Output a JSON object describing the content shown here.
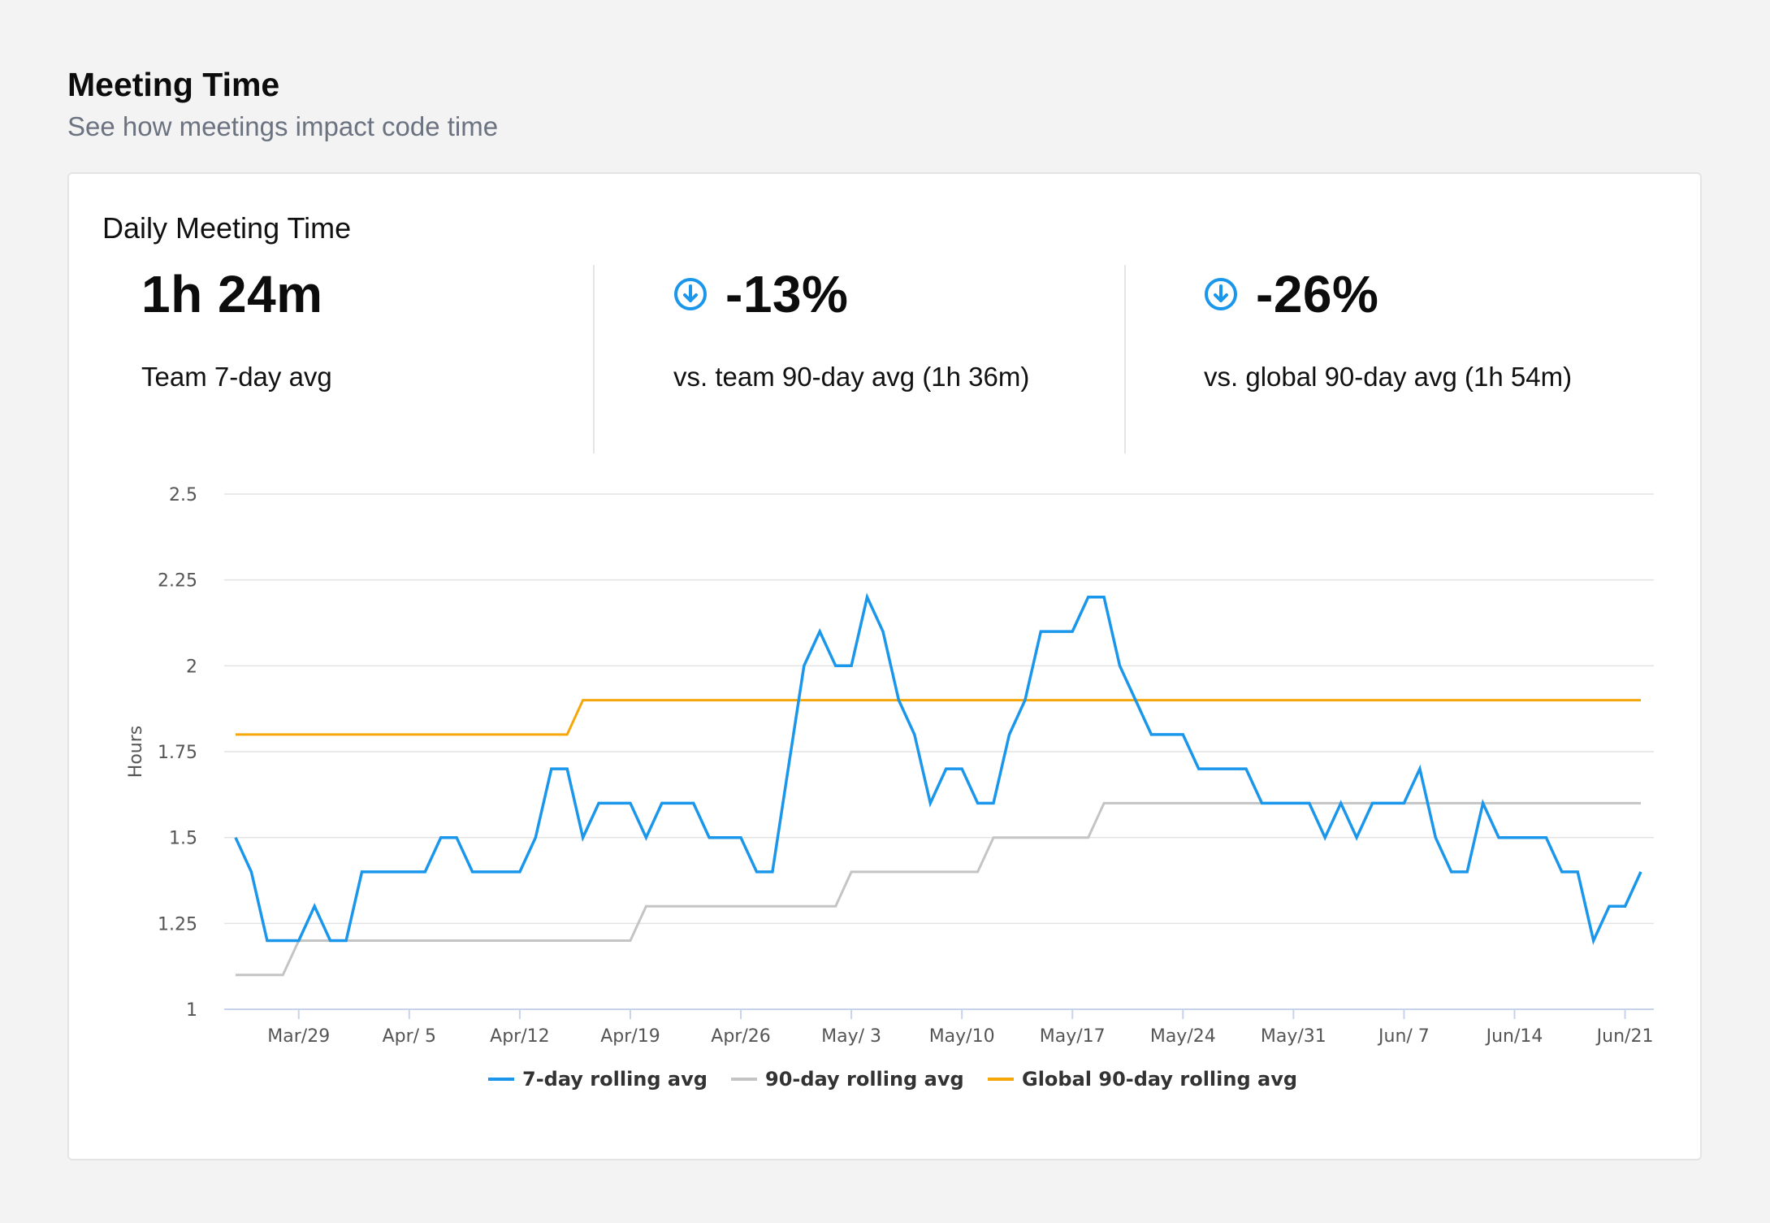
{
  "page": {
    "title": "Meeting Time",
    "subtitle": "See how meetings impact code time"
  },
  "card": {
    "title": "Daily Meeting Time",
    "stats": [
      {
        "value": "1h 24m",
        "label": "Team 7-day avg",
        "icon": ""
      },
      {
        "value": "-13%",
        "label": "vs. team 90-day avg (1h 36m)",
        "icon": "arrow-down-circle-icon"
      },
      {
        "value": "-26%",
        "label": "vs. global 90-day avg (1h 54m)",
        "icon": "arrow-down-circle-icon"
      }
    ]
  },
  "colors": {
    "series_7day": "#1a96ea",
    "series_90day": "#c4c4c4",
    "series_global": "#f5a70a",
    "icon": "#1a96ea"
  },
  "chart_data": {
    "type": "line",
    "ylabel": "Hours",
    "xlabel": "",
    "ylim": [
      1,
      2.5
    ],
    "yticks": [
      "1",
      "1.25",
      "1.5",
      "1.75",
      "2",
      "2.25",
      "2.5"
    ],
    "grid": true,
    "legend_position": "bottom-center",
    "x": [
      "Mar 25",
      "Mar 26",
      "Mar 27",
      "Mar 28",
      "Mar 29",
      "Mar 30",
      "Mar 31",
      "Apr 1",
      "Apr 2",
      "Apr 3",
      "Apr 4",
      "Apr 5",
      "Apr 6",
      "Apr 7",
      "Apr 8",
      "Apr 9",
      "Apr 10",
      "Apr 11",
      "Apr 12",
      "Apr 13",
      "Apr 14",
      "Apr 15",
      "Apr 16",
      "Apr 17",
      "Apr 18",
      "Apr 19",
      "Apr 20",
      "Apr 21",
      "Apr 22",
      "Apr 23",
      "Apr 24",
      "Apr 25",
      "Apr 26",
      "Apr 27",
      "Apr 28",
      "Apr 29",
      "Apr 30",
      "May 1",
      "May 2",
      "May 3",
      "May 4",
      "May 5",
      "May 6",
      "May 7",
      "May 8",
      "May 9",
      "May 10",
      "May 11",
      "May 12",
      "May 13",
      "May 14",
      "May 15",
      "May 16",
      "May 17",
      "May 18",
      "May 19",
      "May 20",
      "May 21",
      "May 22",
      "May 23",
      "May 24",
      "May 25",
      "May 26",
      "May 27",
      "May 28",
      "May 29",
      "May 30",
      "May 31",
      "Jun 1",
      "Jun 2",
      "Jun 3",
      "Jun 4",
      "Jun 5",
      "Jun 6",
      "Jun 7",
      "Jun 8",
      "Jun 9",
      "Jun 10",
      "Jun 11",
      "Jun 12",
      "Jun 13",
      "Jun 14",
      "Jun 15",
      "Jun 16",
      "Jun 17",
      "Jun 18",
      "Jun 19",
      "Jun 20",
      "Jun 21",
      "Jun 22"
    ],
    "xtick_labels": [
      {
        "label": "Mar/29",
        "index": 4
      },
      {
        "label": "Apr/ 5",
        "index": 11
      },
      {
        "label": "Apr/12",
        "index": 18
      },
      {
        "label": "Apr/19",
        "index": 25
      },
      {
        "label": "Apr/26",
        "index": 32
      },
      {
        "label": "May/ 3",
        "index": 39
      },
      {
        "label": "May/10",
        "index": 46
      },
      {
        "label": "May/17",
        "index": 53
      },
      {
        "label": "May/24",
        "index": 60
      },
      {
        "label": "May/31",
        "index": 67
      },
      {
        "label": "Jun/ 7",
        "index": 74
      },
      {
        "label": "Jun/14",
        "index": 81
      },
      {
        "label": "Jun/21",
        "index": 88
      }
    ],
    "series": [
      {
        "name": "7-day rolling avg",
        "values": [
          1.5,
          1.4,
          1.2,
          1.2,
          1.2,
          1.3,
          1.2,
          1.2,
          1.4,
          1.4,
          1.4,
          1.4,
          1.4,
          1.5,
          1.5,
          1.4,
          1.4,
          1.4,
          1.4,
          1.5,
          1.7,
          1.7,
          1.5,
          1.6,
          1.6,
          1.6,
          1.5,
          1.6,
          1.6,
          1.6,
          1.5,
          1.5,
          1.5,
          1.4,
          1.4,
          1.7,
          2.0,
          2.1,
          2.0,
          2.0,
          2.2,
          2.1,
          1.9,
          1.8,
          1.6,
          1.7,
          1.7,
          1.6,
          1.6,
          1.8,
          1.9,
          2.1,
          2.1,
          2.1,
          2.2,
          2.2,
          2.0,
          1.9,
          1.8,
          1.8,
          1.8,
          1.7,
          1.7,
          1.7,
          1.7,
          1.6,
          1.6,
          1.6,
          1.6,
          1.5,
          1.6,
          1.5,
          1.6,
          1.6,
          1.6,
          1.7,
          1.5,
          1.4,
          1.4,
          1.6,
          1.5,
          1.5,
          1.5,
          1.5,
          1.4,
          1.4,
          1.2,
          1.3,
          1.3,
          1.4
        ]
      },
      {
        "name": "90-day rolling avg",
        "values": [
          1.1,
          1.1,
          1.1,
          1.1,
          1.2,
          1.2,
          1.2,
          1.2,
          1.2,
          1.2,
          1.2,
          1.2,
          1.2,
          1.2,
          1.2,
          1.2,
          1.2,
          1.2,
          1.2,
          1.2,
          1.2,
          1.2,
          1.2,
          1.2,
          1.2,
          1.2,
          1.3,
          1.3,
          1.3,
          1.3,
          1.3,
          1.3,
          1.3,
          1.3,
          1.3,
          1.3,
          1.3,
          1.3,
          1.3,
          1.4,
          1.4,
          1.4,
          1.4,
          1.4,
          1.4,
          1.4,
          1.4,
          1.4,
          1.5,
          1.5,
          1.5,
          1.5,
          1.5,
          1.5,
          1.5,
          1.6,
          1.6,
          1.6,
          1.6,
          1.6,
          1.6,
          1.6,
          1.6,
          1.6,
          1.6,
          1.6,
          1.6,
          1.6,
          1.6,
          1.6,
          1.6,
          1.6,
          1.6,
          1.6,
          1.6,
          1.6,
          1.6,
          1.6,
          1.6,
          1.6,
          1.6,
          1.6,
          1.6,
          1.6,
          1.6,
          1.6,
          1.6,
          1.6,
          1.6,
          1.6
        ]
      },
      {
        "name": "Global 90-day rolling avg",
        "values": [
          1.8,
          1.8,
          1.8,
          1.8,
          1.8,
          1.8,
          1.8,
          1.8,
          1.8,
          1.8,
          1.8,
          1.8,
          1.8,
          1.8,
          1.8,
          1.8,
          1.8,
          1.8,
          1.8,
          1.8,
          1.8,
          1.8,
          1.9,
          1.9,
          1.9,
          1.9,
          1.9,
          1.9,
          1.9,
          1.9,
          1.9,
          1.9,
          1.9,
          1.9,
          1.9,
          1.9,
          1.9,
          1.9,
          1.9,
          1.9,
          1.9,
          1.9,
          1.9,
          1.9,
          1.9,
          1.9,
          1.9,
          1.9,
          1.9,
          1.9,
          1.9,
          1.9,
          1.9,
          1.9,
          1.9,
          1.9,
          1.9,
          1.9,
          1.9,
          1.9,
          1.9,
          1.9,
          1.9,
          1.9,
          1.9,
          1.9,
          1.9,
          1.9,
          1.9,
          1.9,
          1.9,
          1.9,
          1.9,
          1.9,
          1.9,
          1.9,
          1.9,
          1.9,
          1.9,
          1.9,
          1.9,
          1.9,
          1.9,
          1.9,
          1.9,
          1.9,
          1.9,
          1.9,
          1.9,
          1.9
        ]
      }
    ]
  }
}
